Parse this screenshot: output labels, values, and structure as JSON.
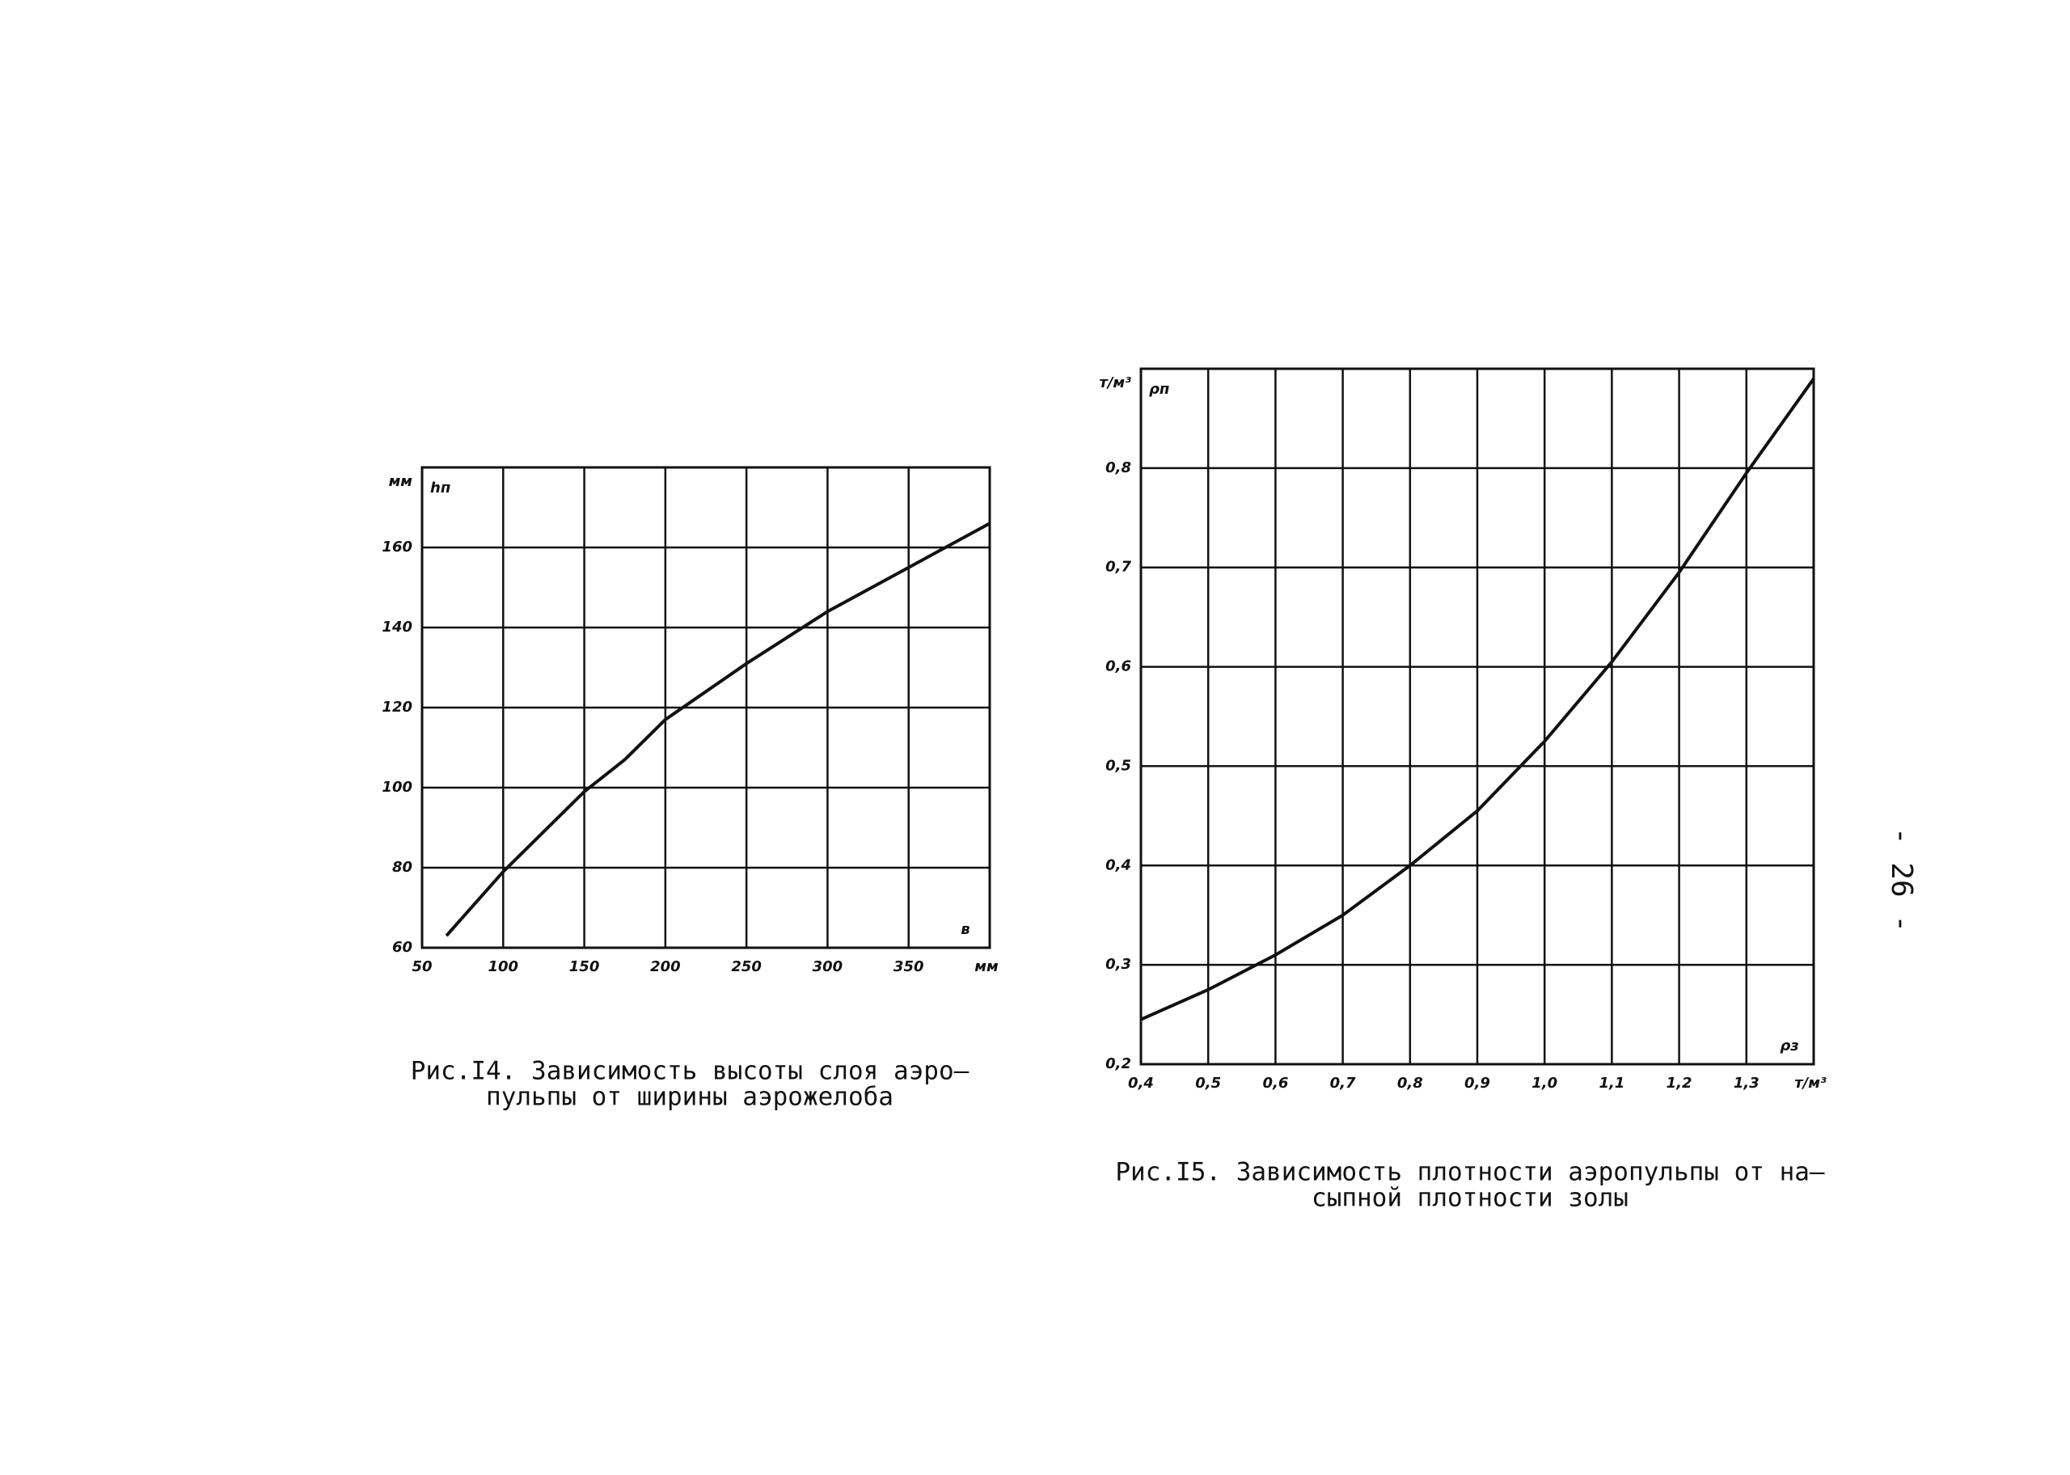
{
  "chart_data": [
    {
      "type": "line",
      "caption": [
        "Рис.I4. Зависимость высоты слоя аэро–",
        "пульпы от ширины аэрожелоба"
      ],
      "y_unit": "мм",
      "y_symbol": "hп",
      "x_symbol": "в",
      "x_unit": "мм",
      "x": [
        65,
        100,
        150,
        175,
        200,
        250,
        300,
        350,
        400
      ],
      "series": [
        {
          "color": "#111111",
          "values": [
            63,
            79,
            99,
            107,
            117,
            131,
            144,
            155,
            166
          ]
        }
      ],
      "xlim": [
        50,
        400
      ],
      "xticks": [
        50,
        100,
        150,
        200,
        250,
        300,
        350
      ],
      "ylim": [
        60,
        180
      ],
      "yticks": [
        60,
        80,
        100,
        120,
        140,
        160
      ],
      "grid": true
    },
    {
      "type": "line",
      "caption": [
        "Рис.I5. Зависимость плотности аэропульпы от на–",
        "сыпной плотности золы"
      ],
      "y_unit": "т/м³",
      "y_symbol": "ρп",
      "x_symbol": "ρз",
      "x_unit": "т/м³",
      "x": [
        0.4,
        0.5,
        0.6,
        0.7,
        0.8,
        0.9,
        1.0,
        1.1,
        1.2,
        1.3,
        1.4
      ],
      "series": [
        {
          "color": "#111111",
          "values": [
            0.245,
            0.275,
            0.31,
            0.35,
            0.4,
            0.455,
            0.525,
            0.605,
            0.695,
            0.795,
            0.89
          ]
        }
      ],
      "xlim": [
        0.4,
        1.4
      ],
      "xticks": [
        {
          "value": 0.4,
          "label": "0,4"
        },
        {
          "value": 0.5,
          "label": "0,5"
        },
        {
          "value": 0.6,
          "label": "0,6"
        },
        {
          "value": 0.7,
          "label": "0,7"
        },
        {
          "value": 0.8,
          "label": "0,8"
        },
        {
          "value": 0.9,
          "label": "0,9"
        },
        {
          "value": 1.0,
          "label": "1,0"
        },
        {
          "value": 1.1,
          "label": "1,1"
        },
        {
          "value": 1.2,
          "label": "1,2"
        },
        {
          "value": 1.3,
          "label": "1,3"
        }
      ],
      "ylim": [
        0.2,
        0.9
      ],
      "yticks": [
        {
          "value": 0.2,
          "label": "0,2"
        },
        {
          "value": 0.3,
          "label": "0,3"
        },
        {
          "value": 0.4,
          "label": "0,4"
        },
        {
          "value": 0.5,
          "label": "0,5"
        },
        {
          "value": 0.6,
          "label": "0,6"
        },
        {
          "value": 0.7,
          "label": "0,7"
        },
        {
          "value": 0.8,
          "label": "0,8"
        }
      ],
      "grid": true
    }
  ],
  "page_number": "- 26 -"
}
